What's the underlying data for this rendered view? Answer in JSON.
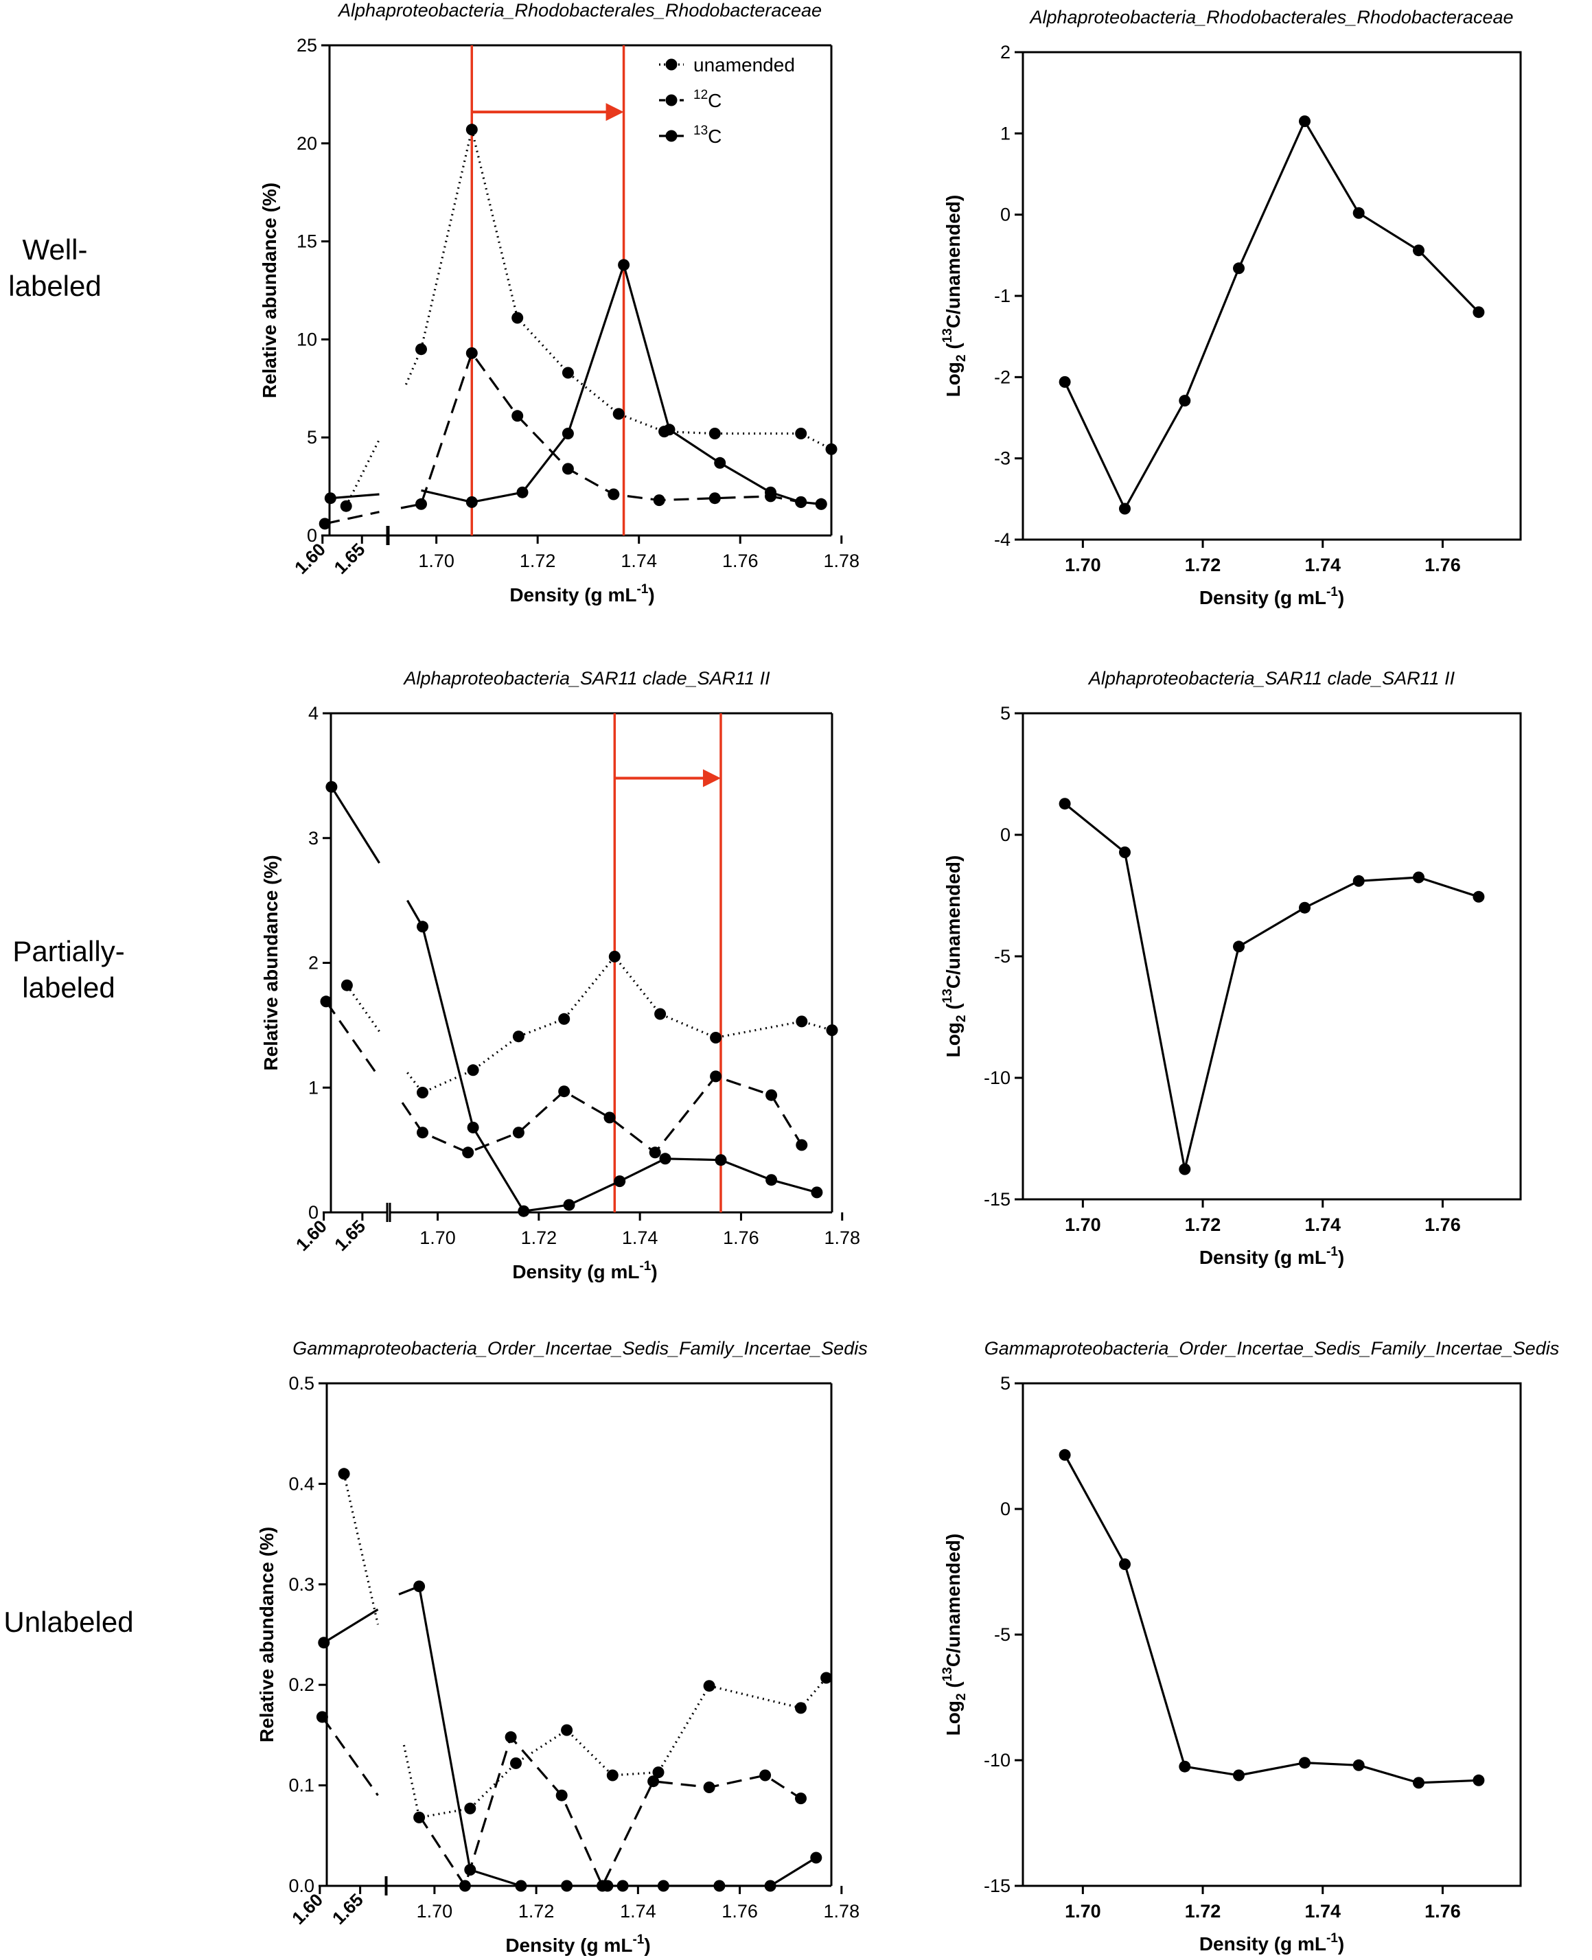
{
  "row_labels": [
    "Well-\nlabeled",
    "Partially-\nlabeled",
    "Unlabeled"
  ],
  "chart_data": [
    {
      "id": "r0-abund",
      "type": "line",
      "title": "Alphaproteobacteria_Rhodobacterales_Rhodobacteraceae",
      "xlabel": "Density (g mL",
      "xlabel_sup": "-1",
      "xlabel_end": ")",
      "ylabel": "Relative abundance (%)",
      "ylim": [
        0,
        25
      ],
      "yticks": [
        0,
        5,
        10,
        15,
        20,
        25
      ],
      "ytick_labels": [
        "0",
        "5",
        "10",
        "15",
        "20",
        "25"
      ],
      "xlim": [
        1.693,
        1.778
      ],
      "xticks": [
        1.7,
        1.72,
        1.74,
        1.76,
        1.78
      ],
      "xtick_labels": [
        "1.70",
        "1.72",
        "1.74",
        "1.76",
        "1.78"
      ],
      "left_xlim": [
        1.595,
        1.675
      ],
      "left_xticks": [
        1.6,
        1.65
      ],
      "left_xtick_labels": [
        "1.60",
        "1.65"
      ],
      "legend": {
        "position": "top-right",
        "entries": [
          {
            "label": "unamended",
            "style": "dotted"
          },
          {
            "label": "C",
            "sup": "12",
            "style": "dashed"
          },
          {
            "label": "C",
            "sup": "13",
            "style": "solid"
          }
        ]
      },
      "series": [
        {
          "name": "unamended",
          "style": "dotted",
          "left": [
            [
              1.63,
              1.5
            ],
            [
              1.672,
              4.9
            ]
          ],
          "right": [
            [
              1.694,
              7.7
            ],
            [
              1.697,
              9.5
            ],
            [
              1.707,
              20.7
            ],
            [
              1.716,
              11.1
            ],
            [
              1.726,
              8.3
            ],
            [
              1.736,
              6.2
            ],
            [
              1.745,
              5.3
            ],
            [
              1.755,
              5.2
            ],
            [
              1.772,
              5.2
            ],
            [
              1.778,
              4.4
            ]
          ]
        },
        {
          "name": "12C",
          "style": "dashed",
          "left": [
            [
              1.603,
              0.6
            ],
            [
              1.672,
              1.2
            ]
          ],
          "right": [
            [
              1.693,
              1.4
            ],
            [
              1.697,
              1.6
            ],
            [
              1.707,
              9.3
            ],
            [
              1.716,
              6.1
            ],
            [
              1.726,
              3.4
            ],
            [
              1.735,
              2.1
            ],
            [
              1.744,
              1.8
            ],
            [
              1.755,
              1.9
            ],
            [
              1.766,
              2.0
            ],
            [
              1.772,
              1.7
            ],
            [
              1.776,
              1.6
            ]
          ]
        },
        {
          "name": "13C",
          "style": "solid",
          "left": [
            [
              1.61,
              1.9
            ],
            [
              1.672,
              2.1
            ]
          ],
          "right": [
            [
              1.697,
              2.3
            ],
            [
              1.707,
              1.7
            ],
            [
              1.717,
              2.2
            ],
            [
              1.726,
              5.2
            ],
            [
              1.737,
              13.8
            ],
            [
              1.746,
              5.4
            ],
            [
              1.756,
              3.7
            ],
            [
              1.766,
              2.2
            ],
            [
              1.772,
              1.7
            ],
            [
              1.776,
              1.6
            ]
          ]
        }
      ],
      "vlines": [
        1.707,
        1.737
      ],
      "arrow": {
        "from": 1.707,
        "to": 1.737,
        "y": 21.6
      }
    },
    {
      "id": "r0-log",
      "type": "line",
      "title": "Alphaproteobacteria_Rhodobacterales_Rhodobacteraceae",
      "xlabel": "Density (g mL",
      "xlabel_sup": "-1",
      "xlabel_end": ")",
      "ylabel_pre": "Log",
      "ylabel_sub": "2",
      "ylabel_mid": " (",
      "ylabel_sup": "13",
      "ylabel_post": "C/unamended)",
      "ylim": [
        -4,
        2
      ],
      "yticks": [
        -4,
        -3,
        -2,
        -1,
        0,
        1,
        2
      ],
      "ytick_labels": [
        "-4",
        "-3",
        "-2",
        "-1",
        "0",
        "1",
        "2"
      ],
      "xlim": [
        1.69,
        1.773
      ],
      "xticks": [
        1.7,
        1.72,
        1.74,
        1.76
      ],
      "xtick_labels": [
        "1.70",
        "1.72",
        "1.74",
        "1.76"
      ],
      "series": [
        {
          "name": "log2 13C/unamended",
          "style": "solid",
          "points": [
            [
              1.697,
              -2.06
            ],
            [
              1.707,
              -3.62
            ],
            [
              1.717,
              -2.29
            ],
            [
              1.726,
              -0.66
            ],
            [
              1.737,
              1.15
            ],
            [
              1.746,
              0.02
            ],
            [
              1.756,
              -0.44
            ],
            [
              1.766,
              -1.2
            ]
          ]
        }
      ]
    },
    {
      "id": "r1-abund",
      "type": "line",
      "title": "Alphaproteobacteria_SAR11 clade_SAR11 II",
      "xlabel": "Density (g mL",
      "xlabel_sup": "-1",
      "xlabel_end": ")",
      "ylabel": "Relative abundance (%)",
      "ylim": [
        0,
        4
      ],
      "yticks": [
        0,
        1,
        2,
        3,
        4
      ],
      "ytick_labels": [
        "0",
        "1",
        "2",
        "3",
        "4"
      ],
      "xlim": [
        1.693,
        1.778
      ],
      "xticks": [
        1.7,
        1.72,
        1.74,
        1.76,
        1.78
      ],
      "xtick_labels": [
        "1.70",
        "1.72",
        "1.74",
        "1.76",
        "1.78"
      ],
      "left_xlim": [
        1.595,
        1.675
      ],
      "left_xticks": [
        1.6,
        1.65
      ],
      "left_xtick_labels": [
        "1.60",
        "1.65"
      ],
      "series": [
        {
          "name": "unamended",
          "style": "dotted",
          "left": [
            [
              1.63,
              1.82
            ],
            [
              1.672,
              1.45
            ]
          ],
          "right": [
            [
              1.694,
              1.12
            ],
            [
              1.697,
              0.96
            ],
            [
              1.707,
              1.14
            ],
            [
              1.716,
              1.41
            ],
            [
              1.725,
              1.55
            ],
            [
              1.735,
              2.05
            ],
            [
              1.744,
              1.59
            ],
            [
              1.755,
              1.4
            ],
            [
              1.772,
              1.53
            ],
            [
              1.778,
              1.46
            ]
          ]
        },
        {
          "name": "12C",
          "style": "dashed",
          "left": [
            [
              1.603,
              1.69
            ],
            [
              1.672,
              1.08
            ]
          ],
          "right": [
            [
              1.693,
              0.88
            ],
            [
              1.697,
              0.64
            ],
            [
              1.706,
              0.48
            ],
            [
              1.716,
              0.64
            ],
            [
              1.725,
              0.97
            ],
            [
              1.734,
              0.76
            ],
            [
              1.743,
              0.48
            ],
            [
              1.755,
              1.09
            ],
            [
              1.766,
              0.94
            ],
            [
              1.772,
              0.54
            ]
          ]
        },
        {
          "name": "13C",
          "style": "solid",
          "left": [
            [
              1.61,
              3.41
            ],
            [
              1.672,
              2.8
            ]
          ],
          "right": [
            [
              1.694,
              2.5
            ],
            [
              1.697,
              2.29
            ],
            [
              1.707,
              0.68
            ],
            [
              1.717,
              0.01
            ],
            [
              1.726,
              0.06
            ],
            [
              1.736,
              0.25
            ],
            [
              1.745,
              0.43
            ],
            [
              1.756,
              0.42
            ],
            [
              1.766,
              0.26
            ],
            [
              1.775,
              0.16
            ]
          ]
        }
      ],
      "vlines": [
        1.735,
        1.756
      ],
      "arrow": {
        "from": 1.735,
        "to": 1.756,
        "y": 3.48
      }
    },
    {
      "id": "r1-log",
      "type": "line",
      "title": "Alphaproteobacteria_SAR11 clade_SAR11 II",
      "xlabel": "Density (g mL",
      "xlabel_sup": "-1",
      "xlabel_end": ")",
      "ylabel_pre": "Log",
      "ylabel_sub": "2",
      "ylabel_mid": " (",
      "ylabel_sup": "13",
      "ylabel_post": "C/unamended)",
      "ylim": [
        -15,
        5
      ],
      "yticks": [
        -15,
        -10,
        -5,
        0,
        5
      ],
      "ytick_labels": [
        "-15",
        "-10",
        "-5",
        "0",
        "5"
      ],
      "xlim": [
        1.69,
        1.773
      ],
      "xticks": [
        1.7,
        1.72,
        1.74,
        1.76
      ],
      "xtick_labels": [
        "1.70",
        "1.72",
        "1.74",
        "1.76"
      ],
      "series": [
        {
          "name": "log2 13C/unamended",
          "style": "solid",
          "points": [
            [
              1.697,
              1.28
            ],
            [
              1.707,
              -0.72
            ],
            [
              1.717,
              -13.76
            ],
            [
              1.726,
              -4.6
            ],
            [
              1.737,
              -3.0
            ],
            [
              1.746,
              -1.9
            ],
            [
              1.756,
              -1.75
            ],
            [
              1.766,
              -2.55
            ]
          ]
        }
      ]
    },
    {
      "id": "r2-abund",
      "type": "line",
      "title": "Gammaproteobacteria_Order_Incertae_Sedis_Family_Incertae_Sedis",
      "xlabel": "Density (g mL",
      "xlabel_sup": "-1",
      "xlabel_end": ")",
      "ylabel": "Relative abundance (%)",
      "ylim": [
        0,
        0.5
      ],
      "yticks": [
        0,
        0.1,
        0.2,
        0.3,
        0.4,
        0.5
      ],
      "ytick_labels": [
        "0.0",
        "0.1",
        "0.2",
        "0.3",
        "0.4",
        "0.5"
      ],
      "xlim": [
        1.693,
        1.778
      ],
      "xticks": [
        1.7,
        1.72,
        1.74,
        1.76,
        1.78
      ],
      "xtick_labels": [
        "1.70",
        "1.72",
        "1.74",
        "1.76",
        "1.78"
      ],
      "left_xlim": [
        1.595,
        1.675
      ],
      "left_xticks": [
        1.6,
        1.65
      ],
      "left_xtick_labels": [
        "1.60",
        "1.65"
      ],
      "series": [
        {
          "name": "unamended",
          "style": "dotted",
          "left": [
            [
              1.63,
              0.41
            ],
            [
              1.672,
              0.26
            ]
          ],
          "right": [
            [
              1.694,
              0.14
            ],
            [
              1.697,
              0.068
            ],
            [
              1.707,
              0.077
            ],
            [
              1.716,
              0.122
            ],
            [
              1.726,
              0.155
            ],
            [
              1.735,
              0.11
            ],
            [
              1.744,
              0.113
            ],
            [
              1.754,
              0.199
            ],
            [
              1.772,
              0.177
            ],
            [
              1.777,
              0.207
            ]
          ]
        },
        {
          "name": "12C",
          "style": "dashed",
          "left": [
            [
              1.603,
              0.168
            ],
            [
              1.672,
              0.09
            ]
          ],
          "right": [
            [
              1.697,
              0.07
            ],
            [
              1.706,
              0.0
            ],
            [
              1.715,
              0.148
            ],
            [
              1.725,
              0.09
            ],
            [
              1.733,
              0.0
            ],
            [
              1.743,
              0.104
            ],
            [
              1.754,
              0.098
            ],
            [
              1.765,
              0.11
            ],
            [
              1.772,
              0.087
            ]
          ]
        },
        {
          "name": "13C",
          "style": "solid",
          "left": [
            [
              1.605,
              0.242
            ],
            [
              1.672,
              0.275
            ]
          ],
          "right": [
            [
              1.693,
              0.29
            ],
            [
              1.697,
              0.298
            ],
            [
              1.707,
              0.016
            ],
            [
              1.717,
              0.0
            ],
            [
              1.726,
              0.0
            ],
            [
              1.734,
              0.0
            ],
            [
              1.737,
              0.0
            ],
            [
              1.745,
              0.0
            ],
            [
              1.756,
              0.0
            ],
            [
              1.766,
              0.0
            ],
            [
              1.775,
              0.028
            ]
          ]
        }
      ]
    },
    {
      "id": "r2-log",
      "type": "line",
      "title": "Gammaproteobacteria_Order_Incertae_Sedis_Family_Incertae_Sedis",
      "xlabel": "Density (g mL",
      "xlabel_sup": "-1",
      "xlabel_end": ")",
      "ylabel_pre": "Log",
      "ylabel_sub": "2",
      "ylabel_mid": " (",
      "ylabel_sup": "13",
      "ylabel_post": "C/unamended)",
      "ylim": [
        -15,
        5
      ],
      "yticks": [
        -15,
        -10,
        -5,
        0,
        5
      ],
      "ytick_labels": [
        "-15",
        "-10",
        "-5",
        "0",
        "5"
      ],
      "xlim": [
        1.69,
        1.773
      ],
      "xticks": [
        1.7,
        1.72,
        1.74,
        1.76
      ],
      "xtick_labels": [
        "1.70",
        "1.72",
        "1.74",
        "1.76"
      ],
      "series": [
        {
          "name": "log2 13C/unamended",
          "style": "solid",
          "points": [
            [
              1.697,
              2.15
            ],
            [
              1.707,
              -2.2
            ],
            [
              1.717,
              -10.25
            ],
            [
              1.726,
              -10.6
            ],
            [
              1.737,
              -10.1
            ],
            [
              1.746,
              -10.2
            ],
            [
              1.756,
              -10.9
            ],
            [
              1.766,
              -10.8
            ]
          ]
        }
      ]
    }
  ],
  "colors": {
    "ink": "#000000",
    "marker": "#000000",
    "highlight": "#e8381c",
    "background": "#ffffff"
  }
}
